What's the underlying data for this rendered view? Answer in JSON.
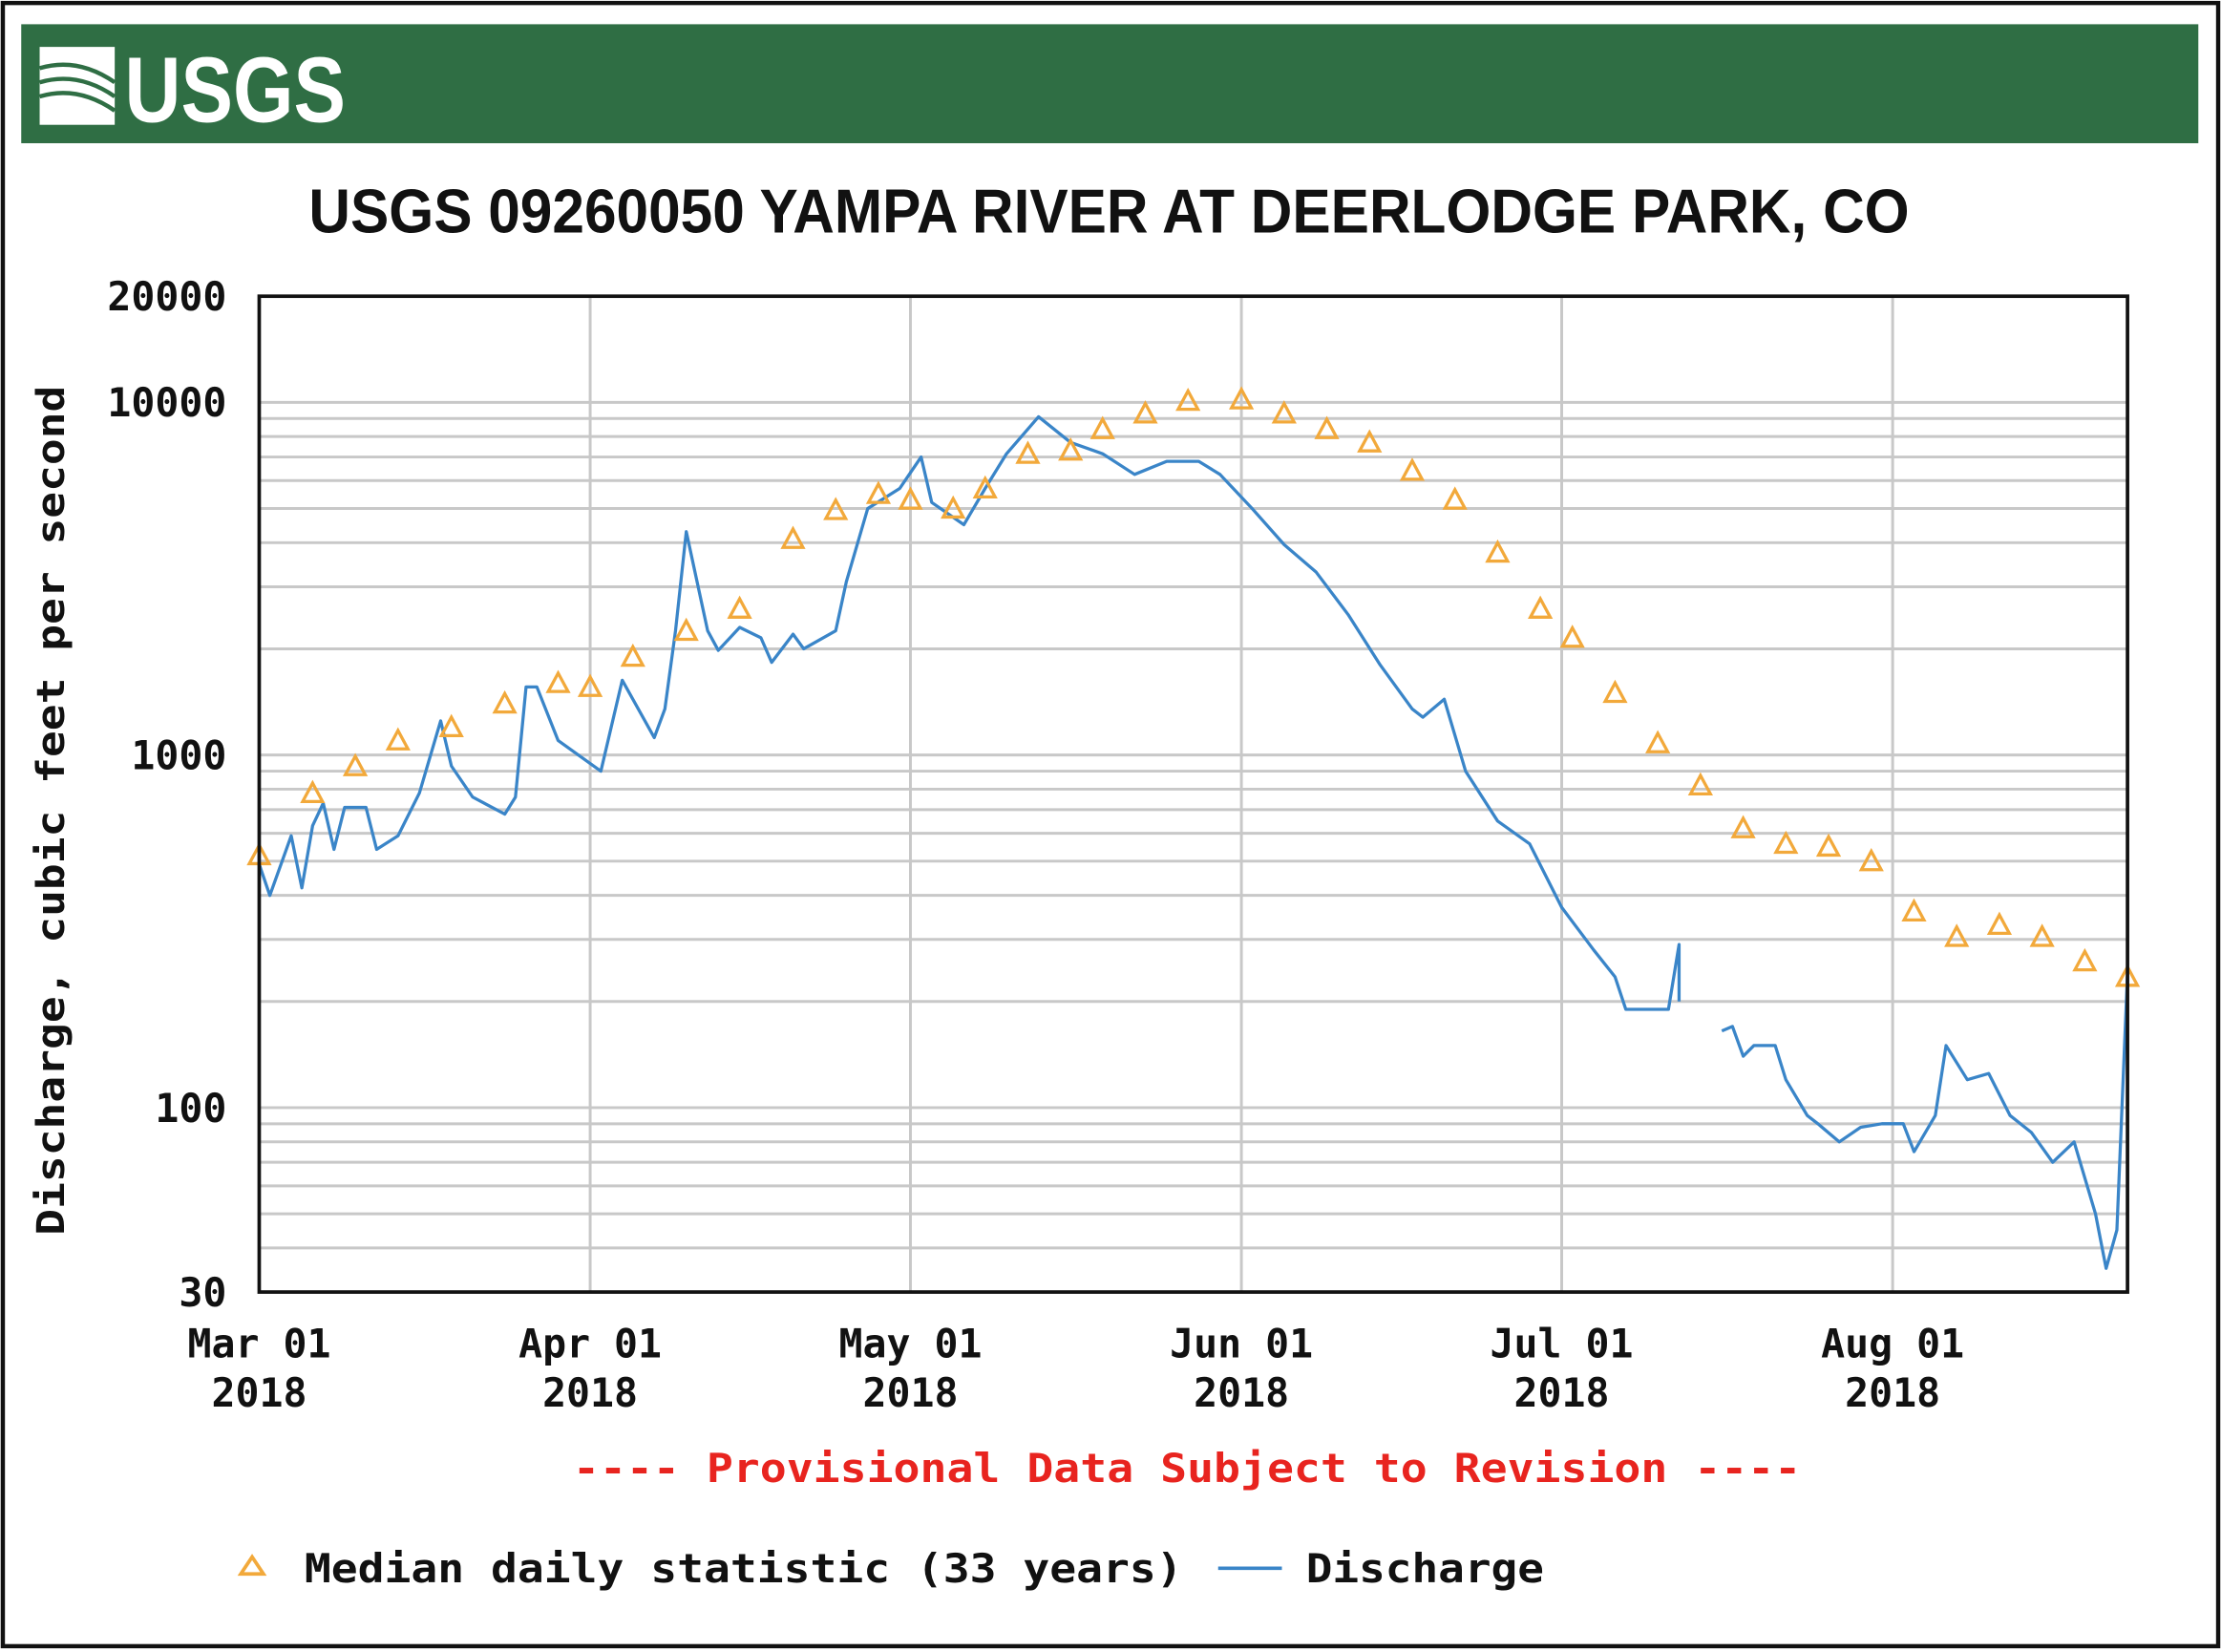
{
  "banner": {
    "logo_text": "USGS",
    "color": "#2f6e44"
  },
  "chart_data": {
    "type": "line",
    "title": "USGS 09260050 YAMPA RIVER AT DEERLODGE PARK, CO",
    "ylabel": "Discharge, cubic feet per second",
    "xlabel": "",
    "yscale": "log",
    "ylim": [
      30,
      20000
    ],
    "xlim": [
      "2018-03-01",
      "2018-08-23"
    ],
    "grid": true,
    "y_ticks": [
      "20000",
      "10000",
      "1000",
      "100",
      "30"
    ],
    "x_ticks": [
      {
        "date": "2018-03-01",
        "line1": "Mar 01",
        "line2": "2018"
      },
      {
        "date": "2018-04-01",
        "line1": "Apr 01",
        "line2": "2018"
      },
      {
        "date": "2018-05-01",
        "line1": "May 01",
        "line2": "2018"
      },
      {
        "date": "2018-06-01",
        "line1": "Jun 01",
        "line2": "2018"
      },
      {
        "date": "2018-07-01",
        "line1": "Jul 01",
        "line2": "2018"
      },
      {
        "date": "2018-08-01",
        "line1": "Aug 01",
        "line2": "2018"
      }
    ],
    "annotation": "---- Provisional Data Subject to Revision ----",
    "annotation_color": "#e8241f",
    "legend_position": "bottom",
    "series": [
      {
        "name": "Median daily statistic (33 years)",
        "marker": "triangle-open",
        "color": "#f2a93b",
        "points": [
          [
            "2018-03-01",
            520
          ],
          [
            "2018-03-06",
            780
          ],
          [
            "2018-03-10",
            930
          ],
          [
            "2018-03-14",
            1100
          ],
          [
            "2018-03-19",
            1200
          ],
          [
            "2018-03-24",
            1400
          ],
          [
            "2018-03-29",
            1600
          ],
          [
            "2018-04-01",
            1560
          ],
          [
            "2018-04-05",
            1900
          ],
          [
            "2018-04-10",
            2250
          ],
          [
            "2018-04-15",
            2600
          ],
          [
            "2018-04-20",
            4100
          ],
          [
            "2018-04-24",
            4950
          ],
          [
            "2018-04-28",
            5500
          ],
          [
            "2018-05-01",
            5300
          ],
          [
            "2018-05-05",
            5000
          ],
          [
            "2018-05-08",
            5700
          ],
          [
            "2018-05-12",
            7150
          ],
          [
            "2018-05-16",
            7300
          ],
          [
            "2018-05-19",
            8400
          ],
          [
            "2018-05-23",
            9300
          ],
          [
            "2018-05-27",
            10100
          ],
          [
            "2018-06-01",
            10200
          ],
          [
            "2018-06-05",
            9300
          ],
          [
            "2018-06-09",
            8400
          ],
          [
            "2018-06-13",
            7700
          ],
          [
            "2018-06-17",
            6400
          ],
          [
            "2018-06-21",
            5300
          ],
          [
            "2018-06-25",
            3750
          ],
          [
            "2018-06-29",
            2600
          ],
          [
            "2018-07-02",
            2150
          ],
          [
            "2018-07-06",
            1500
          ],
          [
            "2018-07-10",
            1080
          ],
          [
            "2018-07-14",
            820
          ],
          [
            "2018-07-18",
            620
          ],
          [
            "2018-07-22",
            560
          ],
          [
            "2018-07-26",
            550
          ],
          [
            "2018-07-30",
            500
          ],
          [
            "2018-08-03",
            360
          ],
          [
            "2018-08-07",
            305
          ],
          [
            "2018-08-11",
            330
          ],
          [
            "2018-08-15",
            305
          ],
          [
            "2018-08-19",
            260
          ],
          [
            "2018-08-23",
            235
          ]
        ]
      },
      {
        "name": "Discharge",
        "marker": "line",
        "color": "#3a85c8",
        "points": [
          [
            "2018-03-01",
            490
          ],
          [
            "2018-03-02",
            400
          ],
          [
            "2018-03-04",
            590
          ],
          [
            "2018-03-05",
            420
          ],
          [
            "2018-03-06",
            630
          ],
          [
            "2018-03-07",
            730
          ],
          [
            "2018-03-08",
            540
          ],
          [
            "2018-03-09",
            710
          ],
          [
            "2018-03-11",
            710
          ],
          [
            "2018-03-12",
            540
          ],
          [
            "2018-03-14",
            590
          ],
          [
            "2018-03-16",
            780
          ],
          [
            "2018-03-18",
            1250
          ],
          [
            "2018-03-19",
            930
          ],
          [
            "2018-03-21",
            760
          ],
          [
            "2018-03-24",
            680
          ],
          [
            "2018-03-25",
            760
          ],
          [
            "2018-03-26",
            1560
          ],
          [
            "2018-03-27",
            1560
          ],
          [
            "2018-03-29",
            1100
          ],
          [
            "2018-04-02",
            900
          ],
          [
            "2018-04-04",
            1630
          ],
          [
            "2018-04-07",
            1120
          ],
          [
            "2018-04-08",
            1350
          ],
          [
            "2018-04-09",
            2250
          ],
          [
            "2018-04-10",
            4300
          ],
          [
            "2018-04-12",
            2250
          ],
          [
            "2018-04-13",
            1980
          ],
          [
            "2018-04-15",
            2300
          ],
          [
            "2018-04-17",
            2150
          ],
          [
            "2018-04-18",
            1830
          ],
          [
            "2018-04-20",
            2200
          ],
          [
            "2018-04-21",
            2000
          ],
          [
            "2018-04-24",
            2250
          ],
          [
            "2018-04-25",
            3100
          ],
          [
            "2018-04-27",
            5000
          ],
          [
            "2018-04-30",
            5700
          ],
          [
            "2018-05-02",
            7000
          ],
          [
            "2018-05-03",
            5200
          ],
          [
            "2018-05-06",
            4500
          ],
          [
            "2018-05-08",
            5700
          ],
          [
            "2018-05-10",
            7150
          ],
          [
            "2018-05-13",
            9100
          ],
          [
            "2018-05-16",
            7700
          ],
          [
            "2018-05-19",
            7150
          ],
          [
            "2018-05-22",
            6250
          ],
          [
            "2018-05-25",
            6800
          ],
          [
            "2018-05-28",
            6800
          ],
          [
            "2018-05-30",
            6250
          ],
          [
            "2018-06-02",
            5000
          ],
          [
            "2018-06-05",
            3950
          ],
          [
            "2018-06-08",
            3300
          ],
          [
            "2018-06-11",
            2500
          ],
          [
            "2018-06-14",
            1800
          ],
          [
            "2018-06-17",
            1350
          ],
          [
            "2018-06-18",
            1280
          ],
          [
            "2018-06-20",
            1440
          ],
          [
            "2018-06-22",
            900
          ],
          [
            "2018-06-25",
            650
          ],
          [
            "2018-06-28",
            560
          ],
          [
            "2018-07-01",
            370
          ],
          [
            "2018-07-04",
            280
          ],
          [
            "2018-07-06",
            235
          ],
          [
            "2018-07-07",
            190
          ],
          [
            "2018-07-10",
            190
          ],
          [
            "2018-07-11",
            190
          ],
          [
            "2018-07-12",
            290
          ],
          [
            "2018-07-12",
            200
          ],
          [
            null,
            null
          ],
          [
            "2018-07-16",
            165
          ],
          [
            "2018-07-17",
            170
          ],
          [
            "2018-07-18",
            140
          ],
          [
            "2018-07-19",
            150
          ],
          [
            "2018-07-21",
            150
          ],
          [
            "2018-07-22",
            120
          ],
          [
            "2018-07-24",
            95
          ],
          [
            "2018-07-25",
            90
          ],
          [
            "2018-07-27",
            80
          ],
          [
            "2018-07-29",
            88
          ],
          [
            "2018-07-31",
            90
          ],
          [
            "2018-08-02",
            90
          ],
          [
            "2018-08-03",
            75
          ],
          [
            "2018-08-05",
            95
          ],
          [
            "2018-08-06",
            150
          ],
          [
            "2018-08-08",
            120
          ],
          [
            "2018-08-10",
            125
          ],
          [
            "2018-08-12",
            95
          ],
          [
            "2018-08-14",
            85
          ],
          [
            "2018-08-16",
            70
          ],
          [
            "2018-08-18",
            80
          ],
          [
            "2018-08-20",
            50
          ],
          [
            "2018-08-21",
            35
          ],
          [
            "2018-08-22",
            45
          ],
          [
            "2018-08-23",
            240
          ]
        ]
      }
    ]
  }
}
